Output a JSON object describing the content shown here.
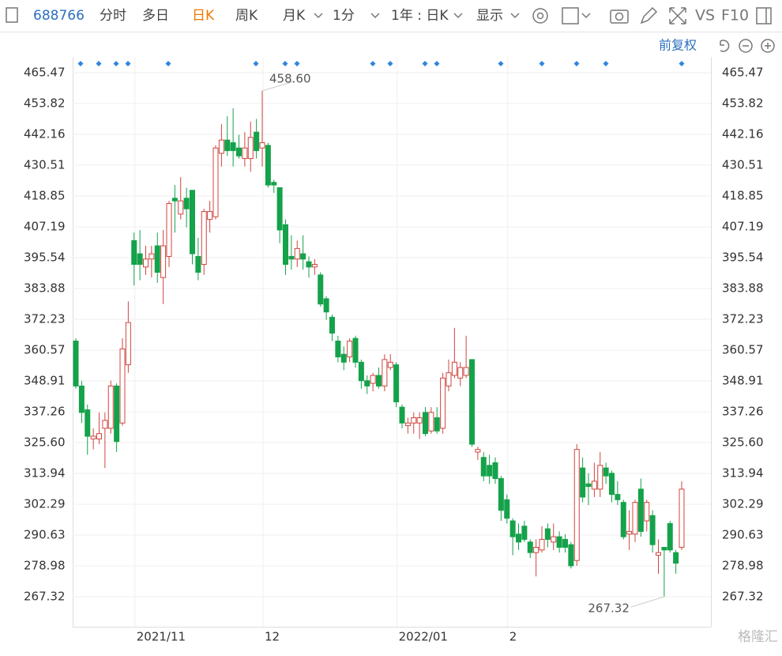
{
  "toolbar": {
    "code": "688766",
    "tabs": [
      "分时",
      "多日",
      "日K",
      "周K",
      "月K",
      "1分",
      "1年 : 日K",
      "显示"
    ],
    "vs": "VS",
    "f10": "F10",
    "adjust": "前复权"
  },
  "watermark": "格隆汇",
  "chart_data": {
    "type": "candlestick",
    "up_color": "#d0453f",
    "down_color": "#14a24a",
    "grid": true,
    "ylim": [
      255.96,
      480.41
    ],
    "yticks": [
      465.47,
      453.82,
      442.16,
      430.51,
      418.85,
      407.19,
      395.54,
      383.88,
      372.23,
      360.57,
      348.91,
      337.26,
      {
        "value": 325.6,
        "label": "325.60"
      },
      313.94,
      302.29,
      290.63,
      278.98,
      267.32
    ],
    "max_label": "458.60",
    "min_label": "267.32",
    "categories": [
      null,
      null,
      null,
      null,
      null,
      null,
      null,
      null,
      null,
      null,
      "2021/11",
      null,
      null,
      null,
      null,
      null,
      null,
      null,
      null,
      null,
      null,
      null,
      null,
      null,
      null,
      null,
      null,
      null,
      null,
      null,
      null,
      null,
      "12",
      null,
      null,
      null,
      null,
      null,
      null,
      null,
      null,
      null,
      null,
      null,
      null,
      null,
      null,
      null,
      null,
      null,
      null,
      null,
      null,
      null,
      null,
      "2022/01",
      null,
      null,
      null,
      null,
      null,
      null,
      null,
      null,
      null,
      null,
      null,
      null,
      null,
      null,
      null,
      null,
      null,
      null,
      "2",
      null,
      null,
      null,
      null,
      null,
      null,
      null,
      null,
      null,
      null,
      null,
      null,
      null,
      null,
      null,
      null,
      null,
      null,
      null,
      null,
      null,
      null,
      null,
      null,
      null,
      null,
      null,
      null,
      null,
      null
    ],
    "candles": [
      [
        364,
        365,
        346,
        347
      ],
      [
        347,
        349,
        333,
        337
      ],
      [
        338,
        340,
        321,
        328
      ],
      [
        327,
        331,
        323,
        328
      ],
      [
        327,
        337,
        325,
        329
      ],
      [
        331,
        337,
        316,
        334
      ],
      [
        331,
        349,
        329,
        347
      ],
      [
        347,
        348,
        322,
        326
      ],
      [
        333,
        365,
        332,
        361
      ],
      [
        355,
        379,
        352,
        371
      ],
      [
        402,
        405,
        385,
        393
      ],
      [
        397,
        406,
        387,
        393
      ],
      [
        392,
        400,
        389,
        395
      ],
      [
        395,
        400,
        388,
        397
      ],
      [
        400,
        405,
        386,
        390
      ],
      [
        388,
        406,
        378,
        400
      ],
      [
        396,
        417,
        392,
        416
      ],
      [
        418,
        423,
        405,
        417
      ],
      [
        412,
        426,
        410,
        417
      ],
      [
        418,
        422,
        407,
        414
      ],
      [
        421,
        421,
        393,
        397
      ],
      [
        396,
        403,
        387,
        390
      ],
      [
        393,
        414,
        389,
        413
      ],
      [
        410,
        417,
        405,
        413
      ],
      [
        411,
        438,
        410,
        437
      ],
      [
        435,
        446,
        430,
        440
      ],
      [
        440,
        449,
        434,
        436
      ],
      [
        439,
        452,
        430,
        436
      ],
      [
        437,
        442,
        433,
        434
      ],
      [
        433,
        443,
        430,
        437
      ],
      [
        433,
        447,
        428,
        441
      ],
      [
        443,
        448,
        433,
        436
      ],
      [
        437,
        458.6,
        430,
        439
      ],
      [
        438,
        439,
        422,
        423
      ],
      [
        424,
        425,
        420,
        423
      ],
      [
        422,
        422,
        401,
        406
      ],
      [
        408,
        410,
        389,
        393
      ],
      [
        396,
        404,
        391,
        395
      ],
      [
        395,
        402,
        392,
        399
      ],
      [
        397,
        404,
        391,
        395
      ],
      [
        394,
        396,
        388,
        392
      ],
      [
        392,
        395,
        389,
        393
      ],
      [
        389,
        390,
        377,
        378
      ],
      [
        380,
        381,
        372,
        375
      ],
      [
        373,
        374,
        364,
        367
      ],
      [
        364,
        366,
        356,
        358
      ],
      [
        359,
        362,
        353,
        356
      ],
      [
        358,
        365,
        356,
        364
      ],
      [
        365,
        366,
        354,
        356
      ],
      [
        356,
        357,
        346,
        349
      ],
      [
        349,
        351,
        344,
        347
      ],
      [
        348,
        352,
        345,
        351
      ],
      [
        351,
        354,
        346,
        347
      ],
      [
        347,
        359,
        345,
        357
      ],
      [
        354,
        359,
        353,
        356
      ],
      [
        355,
        356,
        339,
        341
      ],
      [
        339,
        340,
        331,
        333
      ],
      [
        332,
        335,
        329,
        333
      ],
      [
        333,
        337,
        329,
        335
      ],
      [
        333,
        337,
        327,
        335
      ],
      [
        337,
        339,
        328,
        329
      ],
      [
        330,
        339,
        329,
        337
      ],
      [
        335,
        339,
        329,
        330
      ],
      [
        331,
        352,
        329,
        350
      ],
      [
        347,
        357,
        345,
        352
      ],
      [
        351,
        369,
        350,
        356
      ],
      [
        350,
        356,
        347,
        354
      ],
      [
        351,
        366,
        350,
        354
      ],
      [
        357,
        357,
        324,
        325
      ],
      [
        322,
        324,
        319,
        323
      ],
      [
        320,
        322,
        311,
        313
      ],
      [
        317,
        321,
        310,
        313
      ],
      [
        318,
        320,
        310,
        312
      ],
      [
        312,
        313,
        296,
        300
      ],
      [
        304,
        306,
        295,
        297
      ],
      [
        296,
        297,
        283,
        290
      ],
      [
        291,
        295,
        285,
        288
      ],
      [
        294,
        296,
        288,
        289
      ],
      [
        288,
        289,
        282,
        284
      ],
      [
        284,
        289,
        275,
        286
      ],
      [
        285,
        294,
        284,
        289
      ],
      [
        293,
        295,
        286,
        289
      ],
      [
        288,
        295,
        285,
        290
      ],
      [
        290,
        292,
        284,
        286
      ],
      [
        289,
        291,
        284,
        286
      ],
      [
        287,
        288,
        278,
        279
      ],
      [
        281,
        325,
        279,
        323
      ],
      [
        316,
        320,
        303,
        305
      ],
      [
        310,
        314,
        302,
        309
      ],
      [
        308,
        318,
        305,
        311
      ],
      [
        308,
        322,
        305,
        317
      ],
      [
        316,
        318,
        310,
        313
      ],
      [
        314,
        315,
        303,
        306
      ],
      [
        306,
        311,
        302,
        304
      ],
      [
        303,
        304,
        289,
        290
      ],
      [
        291,
        300,
        285,
        292
      ],
      [
        291,
        304,
        288,
        303
      ],
      [
        308,
        312,
        290,
        292
      ],
      [
        296,
        304,
        292,
        303
      ],
      [
        298,
        300,
        284,
        287
      ],
      [
        283,
        289,
        276,
        284
      ],
      [
        286,
        286,
        267.32,
        285
      ],
      [
        295,
        296,
        284,
        285
      ],
      [
        284,
        285,
        276,
        280
      ],
      [
        286,
        311,
        285,
        308
      ]
    ]
  }
}
